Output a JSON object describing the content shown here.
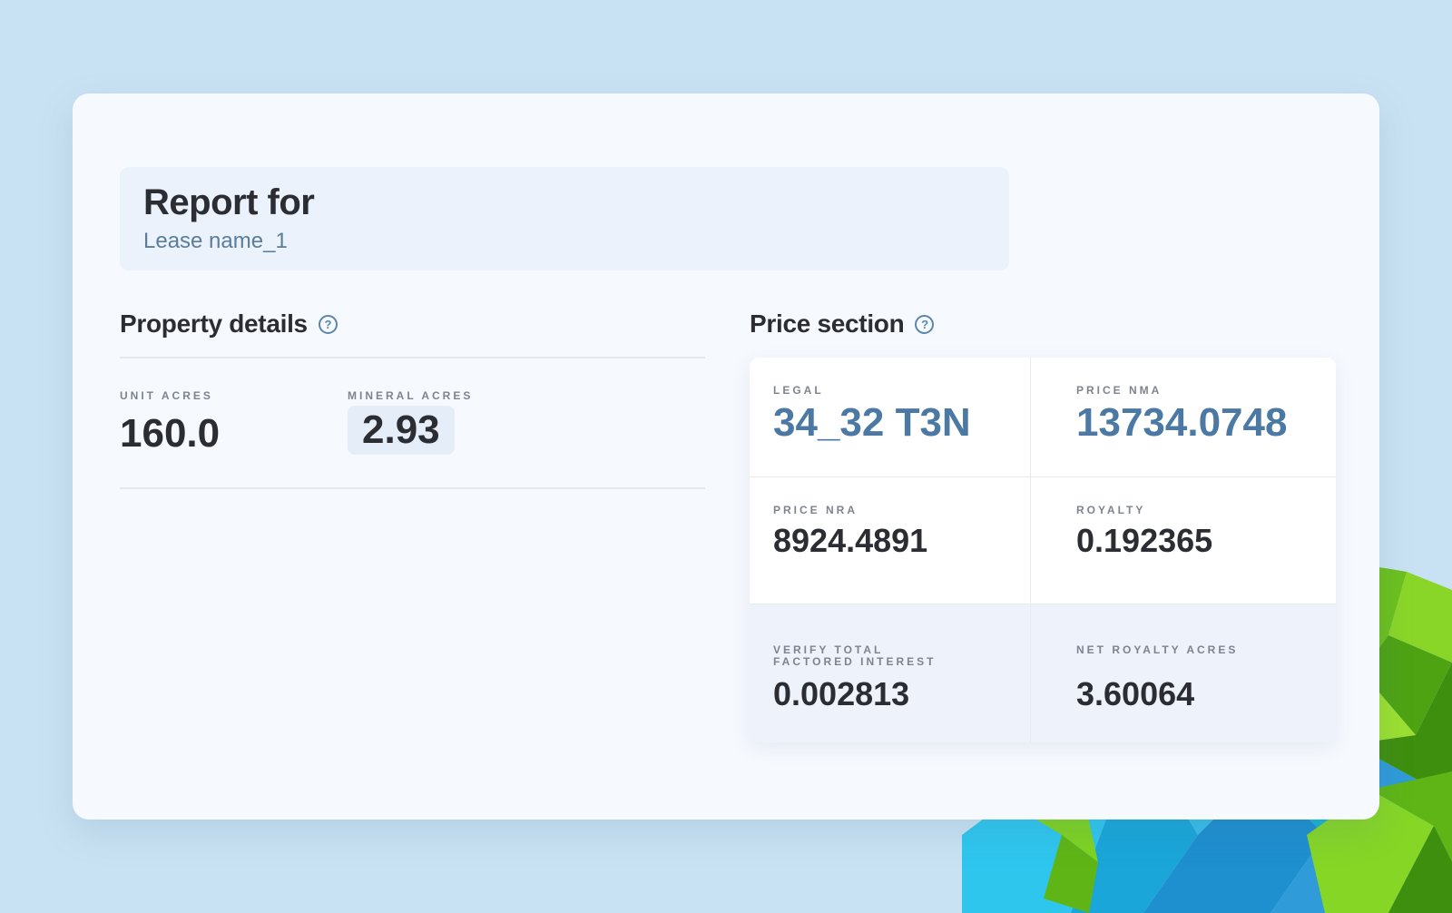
{
  "report": {
    "title": "Report for",
    "lease_name": "Lease name_1"
  },
  "property_details": {
    "heading": "Property details",
    "help_icon": "question-circle-icon",
    "unit_acres": {
      "label": "UNIT ACRES",
      "value": "160.0"
    },
    "mineral_acres": {
      "label": "MINERAL ACRES",
      "value": "2.93"
    }
  },
  "price_section": {
    "heading": "Price section",
    "help_icon": "question-circle-icon",
    "legal": {
      "label": "LEGAL",
      "value": "34_32 T3N"
    },
    "price_nma": {
      "label": "PRICE NMA",
      "value": "13734.0748"
    },
    "price_nra": {
      "label": "PRICE NRA",
      "value": "8924.4891"
    },
    "royalty": {
      "label": "ROYALTY",
      "value": "0.192365"
    },
    "verify_total": {
      "label_line1": "VERIFY TOTAL",
      "label_line2": "FACTORED INTEREST",
      "value": "0.002813"
    },
    "net_royalty_acres": {
      "label": "NET ROYALTY ACRES",
      "value": "3.60064"
    }
  },
  "colors": {
    "background": "#c9e2f3",
    "card": "#f6f9fe",
    "accent_blue": "#4b79a3",
    "text_dark": "#2b2d33"
  }
}
